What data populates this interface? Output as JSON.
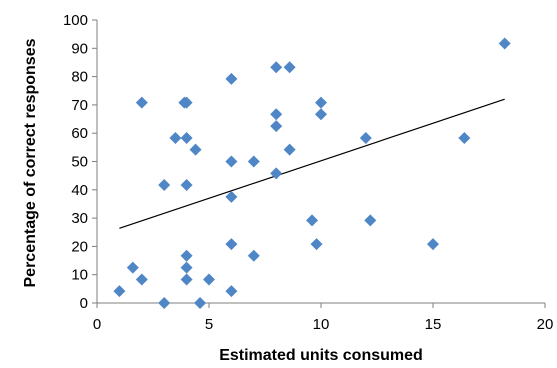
{
  "chart_data": {
    "type": "scatter",
    "xlabel": "Estimated units consumed",
    "ylabel": "Percentage of correct responses",
    "xlim": [
      0,
      20
    ],
    "ylim": [
      0,
      100
    ],
    "x_ticks": [
      "0",
      "5",
      "10",
      "15",
      "20"
    ],
    "y_ticks": [
      "0",
      "10",
      "20",
      "30",
      "40",
      "50",
      "60",
      "70",
      "80",
      "90",
      "100"
    ],
    "grid": false,
    "marker": "diamond",
    "marker_color": "#4f86c6",
    "trendline": {
      "type": "linear",
      "x": [
        1,
        18.2
      ],
      "y": [
        26.4,
        72
      ]
    },
    "points": [
      {
        "x": 1.0,
        "y": 4.2
      },
      {
        "x": 1.6,
        "y": 12.5
      },
      {
        "x": 2.0,
        "y": 8.3
      },
      {
        "x": 2.0,
        "y": 70.8
      },
      {
        "x": 3.0,
        "y": 0.0
      },
      {
        "x": 3.0,
        "y": 41.7
      },
      {
        "x": 3.5,
        "y": 58.3
      },
      {
        "x": 3.9,
        "y": 70.8
      },
      {
        "x": 4.0,
        "y": 70.8
      },
      {
        "x": 4.0,
        "y": 58.3
      },
      {
        "x": 4.0,
        "y": 41.7
      },
      {
        "x": 4.0,
        "y": 16.7
      },
      {
        "x": 4.0,
        "y": 12.5
      },
      {
        "x": 4.0,
        "y": 8.3
      },
      {
        "x": 4.4,
        "y": 54.2
      },
      {
        "x": 4.6,
        "y": 0.0
      },
      {
        "x": 5.0,
        "y": 8.3
      },
      {
        "x": 6.0,
        "y": 79.2
      },
      {
        "x": 6.0,
        "y": 50.0
      },
      {
        "x": 6.0,
        "y": 37.5
      },
      {
        "x": 6.0,
        "y": 20.8
      },
      {
        "x": 6.0,
        "y": 4.2
      },
      {
        "x": 7.0,
        "y": 50.0
      },
      {
        "x": 7.0,
        "y": 16.7
      },
      {
        "x": 8.0,
        "y": 83.3
      },
      {
        "x": 8.0,
        "y": 66.7
      },
      {
        "x": 8.0,
        "y": 62.5
      },
      {
        "x": 8.0,
        "y": 45.8
      },
      {
        "x": 8.6,
        "y": 83.3
      },
      {
        "x": 8.6,
        "y": 54.2
      },
      {
        "x": 9.6,
        "y": 29.2
      },
      {
        "x": 9.8,
        "y": 20.8
      },
      {
        "x": 10.0,
        "y": 70.8
      },
      {
        "x": 10.0,
        "y": 66.7
      },
      {
        "x": 12.0,
        "y": 58.3
      },
      {
        "x": 12.2,
        "y": 29.2
      },
      {
        "x": 15.0,
        "y": 20.8
      },
      {
        "x": 16.4,
        "y": 58.3
      },
      {
        "x": 18.2,
        "y": 91.7
      }
    ]
  }
}
